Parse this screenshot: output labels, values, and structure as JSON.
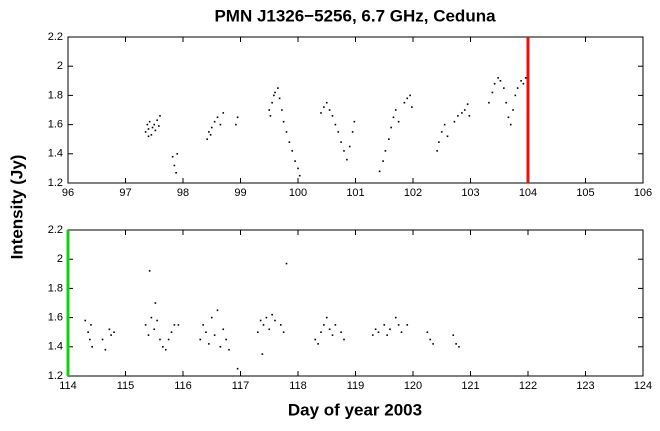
{
  "chart_data": [
    {
      "type": "scatter",
      "title": "PMN J1326−5256, 6.7 GHz, Ceduna",
      "ylabel": "Intensity (Jy)",
      "color": "#000000",
      "xlim": [
        96,
        106
      ],
      "xticks": [
        96,
        97,
        98,
        99,
        100,
        101,
        102,
        103,
        104,
        105,
        106
      ],
      "ylim": [
        1.2,
        2.2
      ],
      "yticks": [
        1.2,
        1.4,
        1.6,
        1.8,
        2,
        2.2
      ],
      "vlines": [
        {
          "x": 104,
          "color": "#e81010"
        }
      ],
      "x": [
        97.35,
        97.38,
        97.4,
        97.42,
        97.45,
        97.47,
        97.5,
        97.52,
        97.55,
        97.58,
        97.6,
        97.4,
        97.82,
        97.85,
        97.88,
        97.9,
        98.42,
        98.45,
        98.5,
        98.55,
        98.6,
        98.65,
        98.7,
        98.48,
        98.92,
        98.95,
        99.5,
        99.55,
        99.58,
        99.6,
        99.65,
        99.68,
        99.72,
        99.75,
        99.8,
        99.85,
        99.9,
        99.95,
        100.0,
        100.03,
        99.52,
        100.4,
        100.45,
        100.5,
        100.55,
        100.6,
        100.65,
        100.7,
        100.75,
        100.8,
        100.85,
        100.9,
        100.95,
        100.98,
        101.42,
        101.48,
        101.52,
        101.58,
        101.62,
        101.66,
        101.7,
        101.75,
        101.85,
        101.9,
        101.95,
        101.98,
        102.42,
        102.45,
        102.5,
        102.55,
        102.6,
        102.72,
        102.78,
        102.85,
        102.9,
        102.95,
        102.98,
        103.32,
        103.38,
        103.42,
        103.48,
        103.52,
        103.58,
        103.62,
        103.66,
        103.7,
        103.74,
        103.78,
        103.82,
        103.88,
        103.92,
        103.96
      ],
      "values": [
        1.55,
        1.6,
        1.57,
        1.62,
        1.53,
        1.58,
        1.6,
        1.56,
        1.63,
        1.59,
        1.66,
        1.52,
        1.38,
        1.32,
        1.27,
        1.4,
        1.5,
        1.55,
        1.58,
        1.62,
        1.65,
        1.6,
        1.68,
        1.53,
        1.6,
        1.65,
        1.7,
        1.75,
        1.8,
        1.82,
        1.85,
        1.78,
        1.7,
        1.62,
        1.55,
        1.48,
        1.42,
        1.35,
        1.3,
        1.25,
        1.66,
        1.68,
        1.72,
        1.75,
        1.7,
        1.66,
        1.6,
        1.55,
        1.48,
        1.42,
        1.36,
        1.45,
        1.55,
        1.62,
        1.28,
        1.35,
        1.42,
        1.5,
        1.58,
        1.65,
        1.7,
        1.62,
        1.75,
        1.78,
        1.8,
        1.72,
        1.42,
        1.48,
        1.55,
        1.6,
        1.52,
        1.62,
        1.66,
        1.68,
        1.7,
        1.74,
        1.66,
        1.75,
        1.82,
        1.88,
        1.92,
        1.9,
        1.85,
        1.75,
        1.65,
        1.6,
        1.7,
        1.8,
        1.85,
        1.9,
        1.88,
        1.92
      ]
    },
    {
      "type": "scatter",
      "xlabel": "Day of year 2003",
      "color": "#000000",
      "xlim": [
        114,
        124
      ],
      "xticks": [
        114,
        115,
        116,
        117,
        118,
        119,
        120,
        121,
        122,
        123,
        124
      ],
      "ylim": [
        1.2,
        2.2
      ],
      "yticks": [
        1.2,
        1.4,
        1.6,
        1.8,
        2,
        2.2
      ],
      "vlines": [
        {
          "x": 114,
          "color": "#10d010"
        }
      ],
      "x": [
        114.3,
        114.35,
        114.38,
        114.42,
        114.4,
        114.6,
        114.65,
        114.72,
        114.75,
        114.8,
        115.35,
        115.4,
        115.42,
        115.45,
        115.5,
        115.52,
        115.55,
        115.6,
        115.65,
        115.7,
        115.75,
        115.8,
        115.85,
        115.92,
        116.3,
        116.35,
        116.4,
        116.45,
        116.5,
        116.55,
        116.6,
        116.65,
        116.7,
        116.75,
        116.8,
        116.95,
        117.3,
        117.35,
        117.4,
        117.45,
        117.5,
        117.55,
        117.6,
        117.7,
        117.75,
        117.8,
        117.38,
        118.3,
        118.35,
        118.4,
        118.45,
        118.5,
        118.55,
        118.6,
        118.65,
        118.75,
        118.8,
        119.3,
        119.35,
        119.4,
        119.5,
        119.55,
        119.6,
        119.7,
        119.75,
        119.8,
        119.9,
        120.25,
        120.3,
        120.35,
        120.7,
        120.75,
        120.8
      ],
      "values": [
        1.58,
        1.5,
        1.45,
        1.4,
        1.55,
        1.45,
        1.38,
        1.52,
        1.48,
        1.5,
        1.55,
        1.48,
        1.92,
        1.6,
        1.52,
        1.7,
        1.58,
        1.45,
        1.4,
        1.38,
        1.45,
        1.5,
        1.55,
        1.55,
        1.45,
        1.55,
        1.5,
        1.42,
        1.6,
        1.48,
        1.65,
        1.4,
        1.52,
        1.45,
        1.38,
        1.25,
        1.5,
        1.58,
        1.55,
        1.6,
        1.52,
        1.62,
        1.58,
        1.55,
        1.5,
        1.97,
        1.35,
        1.45,
        1.42,
        1.5,
        1.55,
        1.6,
        1.52,
        1.48,
        1.55,
        1.5,
        1.45,
        1.48,
        1.52,
        1.5,
        1.55,
        1.48,
        1.52,
        1.6,
        1.55,
        1.5,
        1.55,
        1.5,
        1.45,
        1.42,
        1.48,
        1.42,
        1.4
      ]
    }
  ]
}
